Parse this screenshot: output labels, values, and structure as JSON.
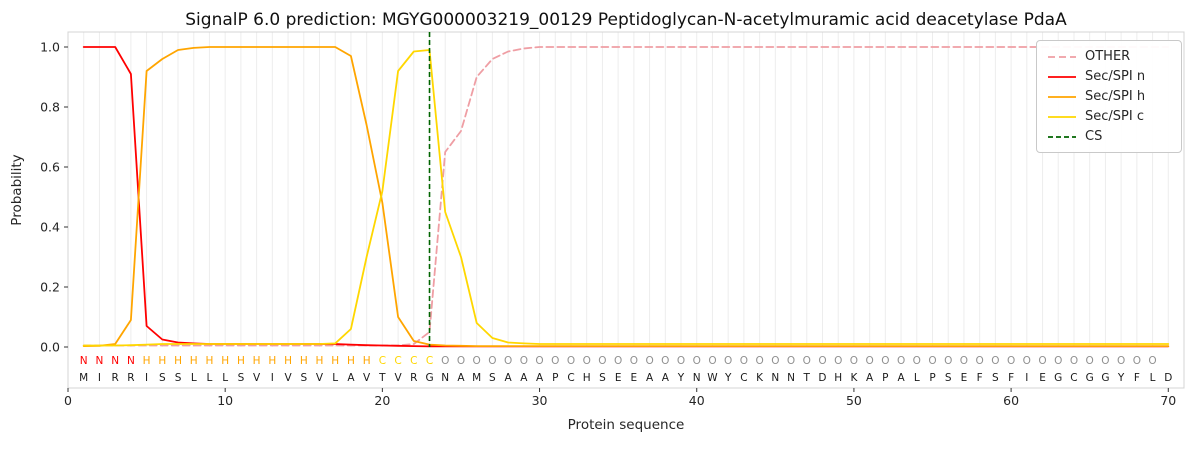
{
  "chart_data": {
    "type": "line",
    "title": "SignalP 6.0 prediction: MGYG000003219_00129 Peptidoglycan-N-acetylmuramic acid deacetylase PdaA",
    "xlabel": "Protein sequence",
    "ylabel": "Probability",
    "xlim": [
      0,
      71
    ],
    "ylim": [
      -0.14,
      1.05
    ],
    "xticks": [
      0,
      10,
      20,
      30,
      40,
      50,
      60,
      70
    ],
    "yticks": [
      0.0,
      0.2,
      0.4,
      0.6,
      0.8,
      1.0
    ],
    "grid": "vertical-per-residue",
    "legend_position": "upper right",
    "sequence": "MIRRISSLLLSVIVSVLAVTVRGNAMSAAAPCHSEEAAYNWYCKNNTDHKAPALPSEFSFIEGCGGYFLD",
    "region_labels": "NNNNHHHHHHHHHHHHHHHCCCCOOOOOOOOOOOOOOOOOOOOOOOOOOOOOOOOOOOOOOOOOOOOOO",
    "label_colors": {
      "N": "#ff0000",
      "H": "#ffa500",
      "C": "#ffd700",
      "O": "#909090"
    },
    "colors": {
      "grid": "#ededed",
      "spine": "#d4d4d4",
      "tick": "#333333",
      "tick_label": "#262626",
      "residue_letter": "#1a1a1a"
    },
    "series": [
      {
        "name": "OTHER",
        "color": "#ef9ea4",
        "dash": "7,4",
        "values": [
          0.005,
          0.005,
          0.005,
          0.005,
          0.005,
          0.005,
          0.005,
          0.005,
          0.005,
          0.005,
          0.005,
          0.005,
          0.005,
          0.005,
          0.005,
          0.005,
          0.005,
          0.005,
          0.005,
          0.005,
          0.005,
          0.01,
          0.05,
          0.65,
          0.72,
          0.9,
          0.96,
          0.985,
          0.995,
          1.0,
          1.0,
          1.0,
          1.0,
          1.0,
          1.0,
          1.0,
          1.0,
          1.0,
          1.0,
          1.0,
          1.0,
          1.0,
          1.0,
          1.0,
          1.0,
          1.0,
          1.0,
          1.0,
          1.0,
          1.0,
          1.0,
          1.0,
          1.0,
          1.0,
          1.0,
          1.0,
          1.0,
          1.0,
          1.0,
          1.0,
          1.0,
          1.0,
          1.0,
          1.0,
          1.0,
          1.0,
          1.0,
          1.0,
          1.0,
          1.0
        ]
      },
      {
        "name": "Sec/SPI n",
        "color": "#ff0000",
        "dash": null,
        "values": [
          1.0,
          1.0,
          1.0,
          0.91,
          0.07,
          0.025,
          0.015,
          0.012,
          0.01,
          0.01,
          0.01,
          0.01,
          0.01,
          0.01,
          0.01,
          0.01,
          0.01,
          0.008,
          0.006,
          0.005,
          0.004,
          0.003,
          0.002,
          0.002,
          0.002,
          0.002,
          0.002,
          0.002,
          0.002,
          0.002,
          0.002,
          0.002,
          0.002,
          0.002,
          0.002,
          0.002,
          0.002,
          0.002,
          0.002,
          0.002,
          0.002,
          0.002,
          0.002,
          0.002,
          0.002,
          0.002,
          0.002,
          0.002,
          0.002,
          0.002,
          0.002,
          0.002,
          0.002,
          0.002,
          0.002,
          0.002,
          0.002,
          0.002,
          0.002,
          0.002,
          0.002,
          0.002,
          0.002,
          0.002,
          0.002,
          0.002,
          0.002,
          0.002,
          0.002,
          0.002
        ]
      },
      {
        "name": "Sec/SPI h",
        "color": "#ffa500",
        "dash": null,
        "values": [
          0.003,
          0.004,
          0.01,
          0.09,
          0.92,
          0.96,
          0.99,
          0.997,
          1.0,
          1.0,
          1.0,
          1.0,
          1.0,
          1.0,
          1.0,
          1.0,
          1.0,
          0.97,
          0.74,
          0.48,
          0.1,
          0.02,
          0.008,
          0.005,
          0.004,
          0.003,
          0.003,
          0.003,
          0.003,
          0.003,
          0.003,
          0.003,
          0.003,
          0.003,
          0.003,
          0.003,
          0.003,
          0.003,
          0.003,
          0.003,
          0.003,
          0.003,
          0.003,
          0.003,
          0.003,
          0.003,
          0.003,
          0.003,
          0.003,
          0.003,
          0.003,
          0.003,
          0.003,
          0.003,
          0.003,
          0.003,
          0.003,
          0.003,
          0.003,
          0.003,
          0.003,
          0.003,
          0.003,
          0.003,
          0.003,
          0.003,
          0.003,
          0.003,
          0.003,
          0.003
        ]
      },
      {
        "name": "Sec/SPI c",
        "color": "#ffd700",
        "dash": null,
        "values": [
          0.005,
          0.005,
          0.005,
          0.006,
          0.008,
          0.01,
          0.01,
          0.01,
          0.01,
          0.01,
          0.01,
          0.01,
          0.01,
          0.01,
          0.01,
          0.01,
          0.012,
          0.06,
          0.3,
          0.52,
          0.92,
          0.985,
          0.99,
          0.45,
          0.3,
          0.08,
          0.03,
          0.015,
          0.012,
          0.01,
          0.01,
          0.01,
          0.01,
          0.01,
          0.01,
          0.01,
          0.01,
          0.01,
          0.01,
          0.01,
          0.01,
          0.01,
          0.01,
          0.01,
          0.01,
          0.01,
          0.01,
          0.01,
          0.01,
          0.01,
          0.01,
          0.01,
          0.01,
          0.01,
          0.01,
          0.01,
          0.01,
          0.01,
          0.01,
          0.01,
          0.01,
          0.01,
          0.01,
          0.01,
          0.01,
          0.01,
          0.01,
          0.01,
          0.01,
          0.01
        ]
      }
    ],
    "cs": {
      "name": "CS",
      "position": 23,
      "color": "#006400",
      "dash": "5,3"
    }
  }
}
